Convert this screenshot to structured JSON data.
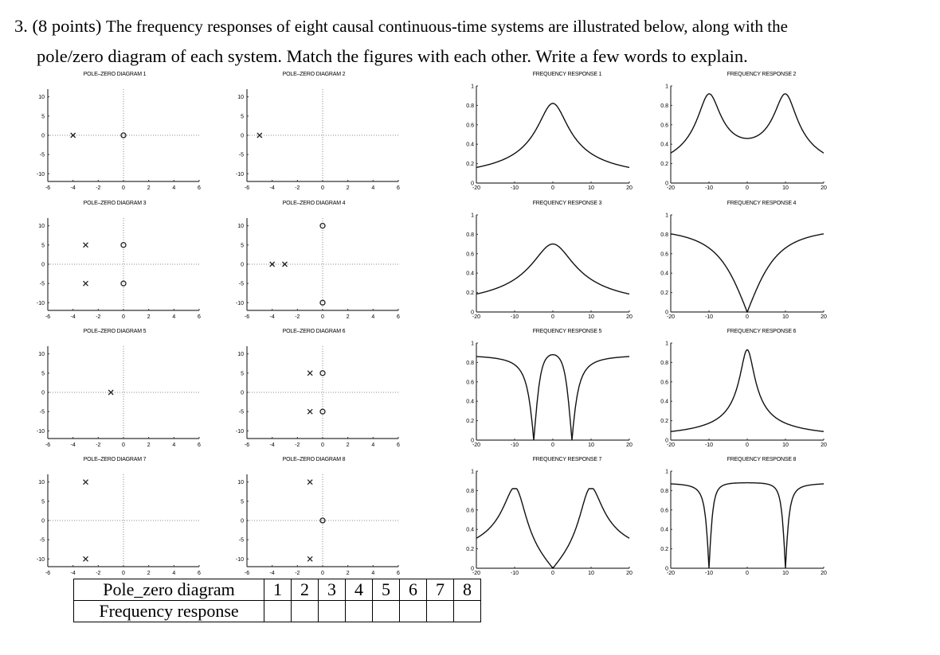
{
  "question": {
    "number": "3.",
    "points": "(8 points)",
    "line1": "The frequency responses of eight causal continuous-time systems are illustrated below, along with the",
    "line2": "pole/zero diagram of each system. Match the figures with each other. Write a few words to explain."
  },
  "pz_axes": {
    "x_ticks": [
      "-6",
      "-4",
      "-2",
      "0",
      "2",
      "4",
      "6"
    ],
    "y_ticks": [
      "10",
      "5",
      "0",
      "-5",
      "-10"
    ]
  },
  "fr_axes": {
    "x_ticks": [
      "-20",
      "-10",
      "0",
      "10",
      "20"
    ],
    "y_ticks": [
      "1",
      "0.8",
      "0.6",
      "0.4",
      "0.2",
      "0"
    ]
  },
  "pole_zero_diagrams": [
    {
      "title": "POLE–ZERO DIAGRAM 1",
      "poles": [
        [
          -4,
          0
        ]
      ],
      "zeros": [
        [
          0,
          0
        ]
      ]
    },
    {
      "title": "POLE–ZERO DIAGRAM 2",
      "poles": [
        [
          -5,
          0
        ]
      ],
      "zeros": []
    },
    {
      "title": "POLE–ZERO DIAGRAM 3",
      "poles": [
        [
          -3,
          5
        ],
        [
          -3,
          -5
        ]
      ],
      "zeros": [
        [
          0,
          5
        ],
        [
          0,
          -5
        ]
      ]
    },
    {
      "title": "POLE–ZERO DIAGRAM 4",
      "poles": [
        [
          -4,
          0
        ],
        [
          -3,
          0
        ]
      ],
      "zeros": [
        [
          0,
          10
        ],
        [
          0,
          -10
        ]
      ]
    },
    {
      "title": "POLE–ZERO DIAGRAM 5",
      "poles": [
        [
          -1,
          0
        ]
      ],
      "zeros": []
    },
    {
      "title": "POLE–ZERO DIAGRAM 6",
      "poles": [
        [
          -1,
          5
        ],
        [
          -1,
          -5
        ]
      ],
      "zeros": [
        [
          0,
          5
        ],
        [
          0,
          -5
        ]
      ]
    },
    {
      "title": "POLE–ZERO DIAGRAM 7",
      "poles": [
        [
          -3,
          10
        ],
        [
          -3,
          -10
        ]
      ],
      "zeros": []
    },
    {
      "title": "POLE–ZERO DIAGRAM 8",
      "poles": [
        [
          -1,
          10
        ],
        [
          -1,
          -10
        ]
      ],
      "zeros": [
        [
          0,
          0
        ]
      ]
    }
  ],
  "frequency_responses": [
    {
      "title": "FREQUENCY RESPONSE 1",
      "shape": "single peak at 0 (~0.82)"
    },
    {
      "title": "FREQUENCY RESPONSE 2",
      "shape": "twin peaks at ±10"
    },
    {
      "title": "FREQUENCY RESPONSE 3",
      "shape": "broad peak at 0 (~0.7)"
    },
    {
      "title": "FREQUENCY RESPONSE 4",
      "shape": "notch at 0, high-pass"
    },
    {
      "title": "FREQUENCY RESPONSE 5",
      "shape": "notches at ±5"
    },
    {
      "title": "FREQUENCY RESPONSE 6",
      "shape": "sharp peak at 0 (~0.93)"
    },
    {
      "title": "FREQUENCY RESPONSE 7",
      "shape": "sharp peaks at ±10, zero at 0"
    },
    {
      "title": "FREQUENCY RESPONSE 8",
      "shape": "sharp notches at ±10"
    }
  ],
  "table": {
    "row1_label": "Pole_zero diagram",
    "row2_label": "Frequency response",
    "columns": [
      "1",
      "2",
      "3",
      "4",
      "5",
      "6",
      "7",
      "8"
    ],
    "answers": [
      "",
      "",
      "",
      "",
      "",
      "",
      "",
      ""
    ]
  }
}
